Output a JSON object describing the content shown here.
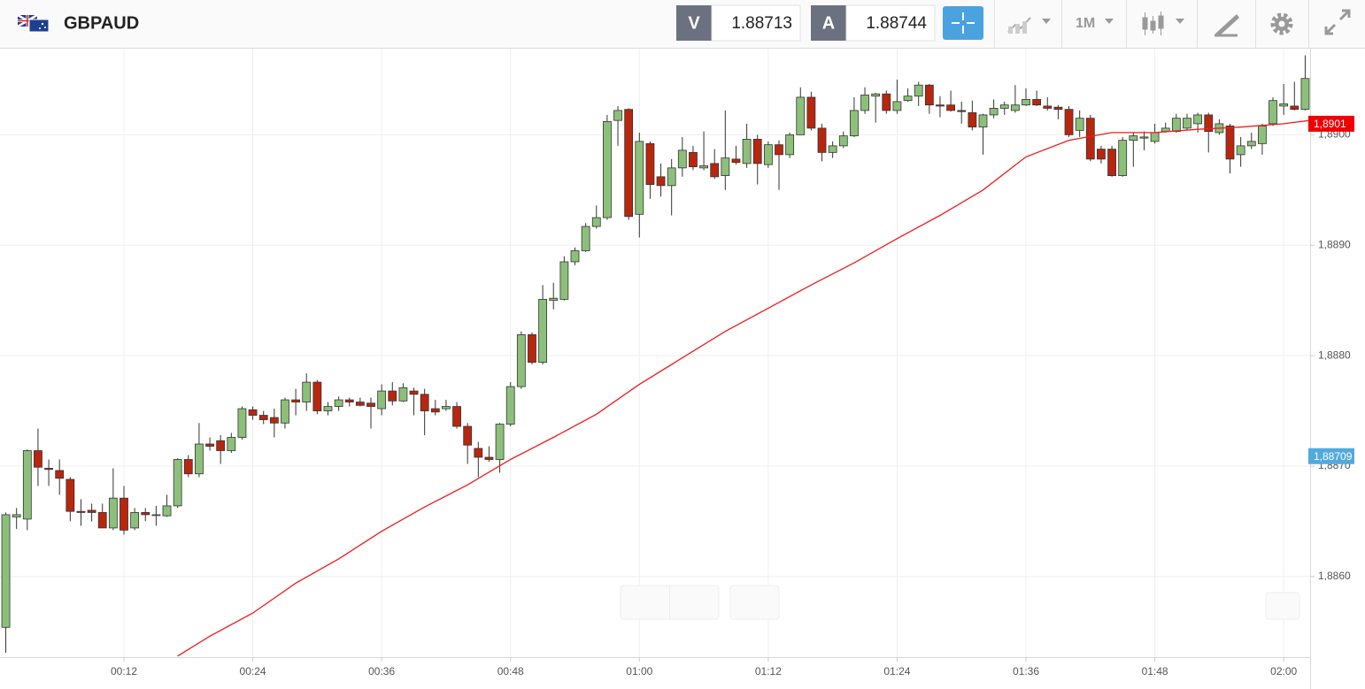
{
  "header": {
    "symbol": "GBPAUD",
    "sell_label": "V",
    "sell_price": 1.88713,
    "buy_label": "A",
    "buy_price": 1.88744,
    "timeframe": "1M"
  },
  "chart_data": {
    "type": "candlestick",
    "x": [
      1,
      2,
      3,
      4,
      5,
      6,
      7,
      8,
      9,
      10,
      11,
      12,
      13,
      14,
      15,
      16,
      17,
      18,
      19,
      20,
      21,
      22,
      23,
      24,
      25,
      26,
      27,
      28,
      29,
      30,
      31,
      32,
      33,
      34,
      35,
      36,
      37,
      38,
      39,
      40,
      41,
      42,
      43,
      44,
      45,
      46,
      47,
      48,
      49,
      50,
      51,
      52,
      53,
      54,
      55,
      56,
      57,
      58,
      59,
      60,
      61,
      62,
      63,
      64,
      65,
      66,
      67,
      68,
      69,
      70,
      71,
      72,
      73,
      74,
      75,
      76,
      77,
      78,
      79,
      80,
      81,
      82,
      83,
      84,
      85,
      86,
      87,
      88,
      89,
      90,
      91,
      92,
      93,
      94,
      95,
      96,
      97,
      98,
      99,
      100,
      101,
      102,
      103,
      104,
      105,
      106,
      107,
      108,
      109,
      110,
      111,
      112,
      113,
      114,
      115,
      116,
      117,
      118,
      119,
      120,
      121,
      122
    ],
    "open": [
      1.88554,
      1.88654,
      1.88652,
      1.88714,
      1.88698,
      1.88696,
      1.88688,
      1.88659,
      1.8866,
      1.88658,
      1.88644,
      1.88671,
      1.88644,
      1.88658,
      1.88656,
      1.88655,
      1.88664,
      1.88706,
      1.88693,
      1.8872,
      1.88723,
      1.88714,
      1.88726,
      1.88751,
      1.88746,
      1.88744,
      1.88739,
      1.8876,
      1.88758,
      1.88776,
      1.8875,
      1.88754,
      1.8876,
      1.88758,
      1.88757,
      1.88752,
      1.88768,
      1.88759,
      1.88768,
      1.88765,
      1.88752,
      1.88752,
      1.88754,
      1.88736,
      1.88716,
      1.88708,
      1.88706,
      1.88738,
      1.88772,
      1.88819,
      1.88794,
      1.8885,
      1.88851,
      1.88885,
      1.88895,
      1.88917,
      1.88925,
      1.89013,
      1.89023,
      1.88928,
      1.88992,
      1.88962,
      1.88954,
      1.8897,
      1.88984,
      1.8897,
      1.88974,
      1.88963,
      1.88978,
      1.88974,
      1.88996,
      1.88973,
      1.88991,
      1.88982,
      1.89,
      1.89034,
      1.89006,
      1.88984,
      1.8899,
      1.88999,
      1.89022,
      1.89035,
      1.89037,
      1.89022,
      1.89031,
      1.89035,
      1.89045,
      1.89027,
      1.89027,
      1.89022,
      1.8902,
      1.89007,
      1.89018,
      1.89024,
      1.89022,
      1.89027,
      1.89032,
      1.89026,
      1.89025,
      1.89023,
      1.89004,
      1.89015,
      1.88987,
      1.88987,
      1.88963,
      1.88995,
      1.88997,
      1.88994,
      1.89003,
      1.89003,
      1.89006,
      1.8901,
      1.89018,
      1.89002,
      1.89008,
      1.88982,
      1.8899,
      1.88992,
      1.8901,
      1.89026,
      1.89026,
      1.89023
    ],
    "high": [
      1.88658,
      1.88662,
      1.88715,
      1.88734,
      1.88706,
      1.88706,
      1.8869,
      1.8867,
      1.88666,
      1.88666,
      1.88698,
      1.88682,
      1.88662,
      1.88662,
      1.88664,
      1.88674,
      1.88707,
      1.8871,
      1.88739,
      1.88726,
      1.88728,
      1.8873,
      1.88754,
      1.88754,
      1.8875,
      1.88752,
      1.88762,
      1.8877,
      1.88784,
      1.88778,
      1.88758,
      1.88763,
      1.88762,
      1.88762,
      1.88762,
      1.88774,
      1.88776,
      1.88775,
      1.88771,
      1.8877,
      1.8876,
      1.8876,
      1.88758,
      1.88739,
      1.88722,
      1.88718,
      1.88739,
      1.88776,
      1.88822,
      1.88821,
      1.88864,
      1.88866,
      1.8889,
      1.88898,
      1.8892,
      1.88936,
      1.89018,
      1.89026,
      1.89024,
      1.89002,
      1.88994,
      1.88974,
      1.88978,
      1.88998,
      1.8899,
      1.89003,
      1.88987,
      1.89022,
      1.8899,
      1.8901,
      1.89,
      1.88994,
      1.88995,
      1.89002,
      1.89043,
      1.89039,
      1.8901,
      1.88994,
      1.89003,
      1.89034,
      1.89043,
      1.89038,
      1.8904,
      1.8905,
      1.89042,
      1.89048,
      1.89046,
      1.89035,
      1.8904,
      1.8903,
      1.89031,
      1.89019,
      1.89032,
      1.8903,
      1.89045,
      1.89042,
      1.8904,
      1.89034,
      1.89027,
      1.89026,
      1.89022,
      1.89018,
      1.8899,
      1.8899,
      1.88998,
      1.89002,
      1.89003,
      1.8901,
      1.89011,
      1.89019,
      1.89019,
      1.8902,
      1.8902,
      1.89014,
      1.8901,
      1.88998,
      1.89002,
      1.8901,
      1.89034,
      1.89046,
      1.89048,
      1.89072
    ],
    "low": [
      1.88531,
      1.88643,
      1.88642,
      1.88682,
      1.88682,
      1.88674,
      1.8865,
      1.88646,
      1.8865,
      1.88644,
      1.88642,
      1.88638,
      1.88642,
      1.8865,
      1.88646,
      1.88654,
      1.88662,
      1.8869,
      1.8869,
      1.88714,
      1.88702,
      1.88712,
      1.88724,
      1.88742,
      1.88738,
      1.88726,
      1.88734,
      1.88746,
      1.8875,
      1.88747,
      1.88746,
      1.8875,
      1.88754,
      1.88754,
      1.88734,
      1.88746,
      1.88755,
      1.88758,
      1.88746,
      1.88728,
      1.88746,
      1.8875,
      1.88734,
      1.88702,
      1.8869,
      1.88704,
      1.88694,
      1.88736,
      1.8877,
      1.88792,
      1.88792,
      1.88842,
      1.8885,
      1.88882,
      1.88894,
      1.88915,
      1.88923,
      1.8899,
      1.88923,
      1.88907,
      1.88942,
      1.88944,
      1.88927,
      1.88962,
      1.88968,
      1.88968,
      1.8896,
      1.8895,
      1.88973,
      1.8897,
      1.88955,
      1.8897,
      1.8895,
      1.88979,
      1.89,
      1.89004,
      1.88976,
      1.88979,
      1.88988,
      1.88998,
      1.89019,
      1.89011,
      1.89019,
      1.89019,
      1.8903,
      1.89026,
      1.89019,
      1.89016,
      1.89021,
      1.8901,
      1.89004,
      1.88982,
      1.89015,
      1.89018,
      1.8902,
      1.89026,
      1.89026,
      1.89022,
      1.89014,
      1.88998,
      1.88998,
      1.88976,
      1.88974,
      1.88962,
      1.88962,
      1.88971,
      1.88986,
      1.88992,
      1.89002,
      1.89002,
      1.89004,
      1.89002,
      1.88984,
      1.89,
      1.88965,
      1.88971,
      1.88987,
      1.88982,
      1.89008,
      1.89018,
      1.89022,
      1.89022
    ],
    "close": [
      1.88656,
      1.88656,
      1.88714,
      1.88699,
      1.88697,
      1.88689,
      1.88659,
      1.88658,
      1.88658,
      1.88644,
      1.88671,
      1.88642,
      1.88658,
      1.88656,
      1.88656,
      1.88664,
      1.88706,
      1.88693,
      1.8872,
      1.88718,
      1.88714,
      1.88726,
      1.88752,
      1.88746,
      1.88742,
      1.88739,
      1.8876,
      1.88758,
      1.88776,
      1.8875,
      1.88754,
      1.8876,
      1.88758,
      1.88755,
      1.88754,
      1.88768,
      1.88759,
      1.88771,
      1.88765,
      1.8875,
      1.88749,
      1.88754,
      1.88736,
      1.88719,
      1.88708,
      1.88706,
      1.88738,
      1.88772,
      1.88819,
      1.88794,
      1.88851,
      1.88852,
      1.88885,
      1.88895,
      1.88917,
      1.88925,
      1.89012,
      1.89022,
      1.88926,
      1.88994,
      1.88955,
      1.88954,
      1.8897,
      1.88986,
      1.88971,
      1.88972,
      1.88962,
      1.88979,
      1.88975,
      1.88996,
      1.88974,
      1.88991,
      1.88982,
      1.89,
      1.89034,
      1.89006,
      1.88984,
      1.8899,
      1.88999,
      1.89022,
      1.89036,
      1.89037,
      1.89022,
      1.8903,
      1.89035,
      1.89045,
      1.89027,
      1.89026,
      1.89022,
      1.89021,
      1.89007,
      1.89018,
      1.89024,
      1.89027,
      1.89027,
      1.89032,
      1.89027,
      1.89024,
      1.89023,
      1.89,
      1.89015,
      1.88978,
      1.88978,
      1.88963,
      1.88995,
      1.88999,
      1.88998,
      1.89002,
      1.89006,
      1.89015,
      1.89015,
      1.89018,
      1.89003,
      1.8901,
      1.88978,
      1.8899,
      1.88994,
      1.89008,
      1.89031,
      1.89028,
      1.89023,
      1.89051
    ],
    "up_color": "#8cc07a",
    "down_color": "#b8260e",
    "moving_average": {
      "color": "#ee1c1c",
      "x": [
        17,
        20,
        24,
        28,
        32,
        36,
        40,
        44,
        48,
        52,
        56,
        60,
        64,
        68,
        72,
        76,
        80,
        84,
        88,
        92,
        96,
        100,
        104,
        108,
        112,
        116,
        120,
        122.4
      ],
      "values": [
        1.88528,
        1.88546,
        1.88567,
        1.88594,
        1.88616,
        1.88641,
        1.88663,
        1.88683,
        1.88706,
        1.88726,
        1.88747,
        1.88774,
        1.88798,
        1.88822,
        1.88843,
        1.88864,
        1.88884,
        1.88906,
        1.88927,
        1.8895,
        1.8898,
        1.88995,
        1.89002,
        1.89002,
        1.89005,
        1.89007,
        1.8901,
        1.89013
      ]
    },
    "price_labels": [
      {
        "value": 1.8901,
        "label": "1,8901",
        "color": "#f00000"
      },
      {
        "value": 1.88709,
        "label": "1,88709",
        "color": "#52a9dc"
      }
    ],
    "xlim": [
      0.46,
      122.46
    ],
    "xticks": [
      {
        "value": 12,
        "label": "00:12"
      },
      {
        "value": 24,
        "label": "00:24"
      },
      {
        "value": 36,
        "label": "00:36"
      },
      {
        "value": 48,
        "label": "00:48"
      },
      {
        "value": 60,
        "label": "01:00"
      },
      {
        "value": 72,
        "label": "01:12"
      },
      {
        "value": 84,
        "label": "01:24"
      },
      {
        "value": 96,
        "label": "01:36"
      },
      {
        "value": 108,
        "label": "01:48"
      },
      {
        "value": 120,
        "label": "02:00"
      }
    ],
    "ylim": [
      1.88527,
      1.89078
    ],
    "yticks": [
      {
        "value": 1.886,
        "label": "1,8860"
      },
      {
        "value": 1.887,
        "label": "1,8870"
      },
      {
        "value": 1.888,
        "label": "1,8880"
      },
      {
        "value": 1.889,
        "label": "1,8890"
      },
      {
        "value": 1.89,
        "label": "1,8900"
      }
    ],
    "grid": true
  }
}
